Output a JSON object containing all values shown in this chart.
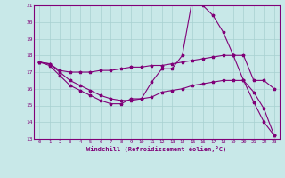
{
  "xlabel": "Windchill (Refroidissement éolien,°C)",
  "background_color": "#c8e8e8",
  "grid_color": "#a8d0d0",
  "line_color": "#800078",
  "xlim": [
    -0.5,
    23.5
  ],
  "ylim": [
    13,
    21
  ],
  "yticks": [
    13,
    14,
    15,
    16,
    17,
    18,
    19,
    20,
    21
  ],
  "xticks": [
    0,
    1,
    2,
    3,
    4,
    5,
    6,
    7,
    8,
    9,
    10,
    11,
    12,
    13,
    14,
    15,
    16,
    17,
    18,
    19,
    20,
    21,
    22,
    23
  ],
  "line1_x": [
    0,
    1,
    2,
    3,
    4,
    5,
    6,
    7,
    8,
    9,
    10,
    11,
    12,
    13,
    14,
    15,
    16,
    17,
    18,
    19,
    20,
    21,
    22,
    23
  ],
  "line1_y": [
    17.6,
    17.4,
    16.8,
    16.2,
    15.9,
    15.6,
    15.3,
    15.1,
    15.1,
    15.4,
    15.4,
    16.4,
    17.2,
    17.2,
    18.0,
    21.4,
    21.0,
    20.4,
    19.4,
    18.0,
    16.5,
    15.2,
    14.0,
    13.2
  ],
  "line2_x": [
    0,
    1,
    2,
    3,
    4,
    5,
    6,
    7,
    8,
    9,
    10,
    11,
    12,
    13,
    14,
    15,
    16,
    17,
    18,
    19,
    20,
    21,
    22,
    23
  ],
  "line2_y": [
    17.6,
    17.5,
    17.1,
    17.0,
    17.0,
    17.0,
    17.1,
    17.1,
    17.2,
    17.3,
    17.3,
    17.4,
    17.4,
    17.5,
    17.6,
    17.7,
    17.8,
    17.9,
    18.0,
    18.0,
    18.0,
    16.5,
    16.5,
    16.0
  ],
  "line3_x": [
    0,
    1,
    2,
    3,
    4,
    5,
    6,
    7,
    8,
    9,
    10,
    11,
    12,
    13,
    14,
    15,
    16,
    17,
    18,
    19,
    20,
    21,
    22,
    23
  ],
  "line3_y": [
    17.6,
    17.5,
    17.0,
    16.5,
    16.2,
    15.9,
    15.6,
    15.4,
    15.3,
    15.3,
    15.4,
    15.5,
    15.8,
    15.9,
    16.0,
    16.2,
    16.3,
    16.4,
    16.5,
    16.5,
    16.5,
    15.8,
    14.8,
    13.2
  ]
}
